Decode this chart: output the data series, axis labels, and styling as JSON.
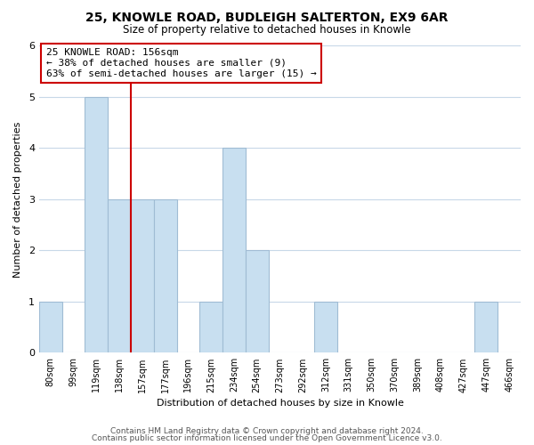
{
  "title": "25, KNOWLE ROAD, BUDLEIGH SALTERTON, EX9 6AR",
  "subtitle": "Size of property relative to detached houses in Knowle",
  "xlabel": "Distribution of detached houses by size in Knowle",
  "ylabel": "Number of detached properties",
  "bin_labels": [
    "80sqm",
    "99sqm",
    "119sqm",
    "138sqm",
    "157sqm",
    "177sqm",
    "196sqm",
    "215sqm",
    "234sqm",
    "254sqm",
    "273sqm",
    "292sqm",
    "312sqm",
    "331sqm",
    "350sqm",
    "370sqm",
    "389sqm",
    "408sqm",
    "427sqm",
    "447sqm",
    "466sqm"
  ],
  "bar_values": [
    1,
    0,
    5,
    3,
    3,
    3,
    0,
    1,
    4,
    2,
    0,
    0,
    1,
    0,
    0,
    0,
    0,
    0,
    0,
    1,
    0
  ],
  "bar_color": "#c8dff0",
  "bar_edge_color": "#a0bcd4",
  "marker_line_color": "#cc0000",
  "annotation_box_color": "#ffffff",
  "annotation_box_edge": "#cc0000",
  "marker_label": "25 KNOWLE ROAD: 156sqm",
  "annotation_line1": "← 38% of detached houses are smaller (9)",
  "annotation_line2": "63% of semi-detached houses are larger (15) →",
  "ylim": [
    0,
    6
  ],
  "yticks": [
    0,
    1,
    2,
    3,
    4,
    5,
    6
  ],
  "footer_line1": "Contains HM Land Registry data © Crown copyright and database right 2024.",
  "footer_line2": "Contains public sector information licensed under the Open Government Licence v3.0.",
  "background_color": "#ffffff",
  "grid_color": "#c8d8e8"
}
